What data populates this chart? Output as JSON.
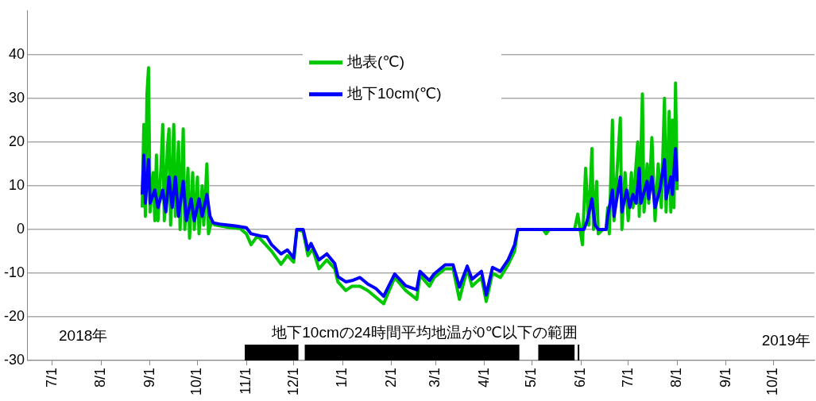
{
  "chart_data": {
    "type": "line",
    "grid": "y",
    "legend": "top",
    "xlim": [
      "2018-06-15",
      "2019-10-27"
    ],
    "xticks": [
      {
        "value": "2018-07-01",
        "label": "7/1"
      },
      {
        "value": "2018-08-01",
        "label": "8/1"
      },
      {
        "value": "2018-09-01",
        "label": "9/1"
      },
      {
        "value": "2018-10-01",
        "label": "10/1"
      },
      {
        "value": "2018-11-01",
        "label": "11/1"
      },
      {
        "value": "2018-12-01",
        "label": "12/1"
      },
      {
        "value": "2019-01-01",
        "label": "1/1"
      },
      {
        "value": "2019-02-01",
        "label": "2/1"
      },
      {
        "value": "2019-03-01",
        "label": "3/1"
      },
      {
        "value": "2019-04-01",
        "label": "4/1"
      },
      {
        "value": "2019-05-01",
        "label": "5/1"
      },
      {
        "value": "2019-06-01",
        "label": "6/1"
      },
      {
        "value": "2019-07-01",
        "label": "7/1"
      },
      {
        "value": "2019-08-01",
        "label": "8/1"
      },
      {
        "value": "2019-09-01",
        "label": "9/1"
      },
      {
        "value": "2019-10-01",
        "label": "10/1"
      }
    ],
    "ylim": [
      -30,
      50
    ],
    "yticks": [
      -30,
      -20,
      -10,
      0,
      10,
      20,
      30,
      40
    ],
    "series": [
      {
        "name": "地表(℃)",
        "color": "#00c800",
        "x": [
          "2018-08-27",
          "2018-08-28",
          "2018-08-29",
          "2018-08-30",
          "2018-08-31",
          "2018-09-01",
          "2018-09-03",
          "2018-09-04",
          "2018-09-05",
          "2018-09-06",
          "2018-09-08",
          "2018-09-09",
          "2018-09-10",
          "2018-09-12",
          "2018-09-13",
          "2018-09-14",
          "2018-09-16",
          "2018-09-17",
          "2018-09-19",
          "2018-09-20",
          "2018-09-22",
          "2018-09-23",
          "2018-09-25",
          "2018-09-26",
          "2018-09-28",
          "2018-09-29",
          "2018-10-01",
          "2018-10-02",
          "2018-10-04",
          "2018-10-05",
          "2018-10-07",
          "2018-10-08",
          "2018-10-10",
          "2018-10-12",
          "2018-10-20",
          "2018-10-28",
          "2018-11-01",
          "2018-11-04",
          "2018-11-08",
          "2018-11-12",
          "2018-11-17",
          "2018-11-20",
          "2018-11-23",
          "2018-11-27",
          "2018-12-01",
          "2018-12-03",
          "2018-12-07",
          "2018-12-10",
          "2018-12-13",
          "2018-12-17",
          "2018-12-22",
          "2018-12-27",
          "2018-12-29",
          "2019-01-03",
          "2019-01-07",
          "2019-01-12",
          "2019-01-17",
          "2019-01-22",
          "2019-01-27",
          "2019-02-03",
          "2019-02-10",
          "2019-02-17",
          "2019-02-19",
          "2019-02-25",
          "2019-02-28",
          "2019-03-07",
          "2019-03-12",
          "2019-03-16",
          "2019-03-21",
          "2019-03-24",
          "2019-03-30",
          "2019-04-02",
          "2019-04-06",
          "2019-04-11",
          "2019-04-16",
          "2019-04-20",
          "2019-04-22",
          "2019-05-08",
          "2019-05-10",
          "2019-05-12",
          "2019-05-28",
          "2019-05-30",
          "2019-06-02",
          "2019-06-04",
          "2019-06-06",
          "2019-06-08",
          "2019-06-09",
          "2019-06-11",
          "2019-06-12",
          "2019-06-15",
          "2019-06-17",
          "2019-06-18",
          "2019-06-19",
          "2019-06-21",
          "2019-06-22",
          "2019-06-26",
          "2019-06-27",
          "2019-06-29",
          "2019-07-01",
          "2019-07-03",
          "2019-07-04",
          "2019-07-07",
          "2019-07-08",
          "2019-07-10",
          "2019-07-11",
          "2019-07-13",
          "2019-07-14",
          "2019-07-16",
          "2019-07-18",
          "2019-07-20",
          "2019-07-22",
          "2019-07-24",
          "2019-07-25",
          "2019-07-27",
          "2019-07-28",
          "2019-07-29",
          "2019-07-30",
          "2019-07-31",
          "2019-08-01"
        ],
        "values": [
          5,
          24,
          3,
          31,
          37,
          4,
          13,
          2,
          17,
          2,
          15,
          24,
          2,
          19,
          23,
          1,
          24,
          3,
          20,
          0,
          23,
          0,
          14,
          -2,
          13,
          0,
          12,
          -1,
          10,
          1,
          15,
          -1,
          2,
          1,
          0.5,
          0.2,
          -1,
          -3.5,
          -1.5,
          -3,
          -5,
          -6.5,
          -8,
          -6,
          -7.5,
          0,
          -0.5,
          -6,
          -4.5,
          -9,
          -7,
          -9,
          -12,
          -14,
          -13,
          -13,
          -14,
          -15.5,
          -17,
          -11,
          -14,
          -16,
          -10.5,
          -13,
          -11,
          -9,
          -9,
          -16,
          -9,
          -13,
          -11,
          -16.5,
          -10,
          -11,
          -8,
          -5,
          0,
          0,
          -1,
          0,
          0,
          3.5,
          -3.5,
          14,
          1,
          18.5,
          0,
          11,
          -1,
          0,
          0,
          5,
          -1,
          25,
          2,
          25.5,
          0,
          13,
          2,
          13,
          5,
          20,
          3,
          31,
          4,
          15,
          6,
          21,
          2,
          15,
          5,
          30,
          4,
          27,
          4,
          25,
          5,
          33.5,
          9
        ]
      },
      {
        "name": "地下10cm(℃)",
        "color": "#0000ff",
        "x": [
          "2018-08-27",
          "2018-08-28",
          "2018-08-29",
          "2018-08-31",
          "2018-09-01",
          "2018-09-04",
          "2018-09-06",
          "2018-09-09",
          "2018-09-11",
          "2018-09-13",
          "2018-09-15",
          "2018-09-17",
          "2018-09-19",
          "2018-09-22",
          "2018-09-24",
          "2018-09-27",
          "2018-09-29",
          "2018-10-02",
          "2018-10-04",
          "2018-10-07",
          "2018-10-09",
          "2018-10-11",
          "2018-10-15",
          "2018-10-25",
          "2018-11-01",
          "2018-11-04",
          "2018-11-10",
          "2018-11-14",
          "2018-11-17",
          "2018-11-23",
          "2018-11-27",
          "2018-12-01",
          "2018-12-03",
          "2018-12-07",
          "2018-12-10",
          "2018-12-12",
          "2018-12-17",
          "2018-12-22",
          "2018-12-27",
          "2018-12-29",
          "2019-01-03",
          "2019-01-07",
          "2019-01-12",
          "2019-01-17",
          "2019-01-22",
          "2019-01-27",
          "2019-02-03",
          "2019-02-10",
          "2019-02-17",
          "2019-02-19",
          "2019-02-25",
          "2019-02-28",
          "2019-03-07",
          "2019-03-12",
          "2019-03-16",
          "2019-03-21",
          "2019-03-24",
          "2019-03-30",
          "2019-04-02",
          "2019-04-06",
          "2019-04-11",
          "2019-04-16",
          "2019-04-20",
          "2019-04-22",
          "2019-06-03",
          "2019-06-05",
          "2019-06-08",
          "2019-06-10",
          "2019-06-12",
          "2019-06-17",
          "2019-06-18",
          "2019-06-21",
          "2019-06-22",
          "2019-06-26",
          "2019-06-27",
          "2019-06-30",
          "2019-07-02",
          "2019-07-04",
          "2019-07-06",
          "2019-07-08",
          "2019-07-09",
          "2019-07-13",
          "2019-07-14",
          "2019-07-16",
          "2019-07-18",
          "2019-07-21",
          "2019-07-24",
          "2019-07-25",
          "2019-07-28",
          "2019-07-29",
          "2019-07-31",
          "2019-08-01"
        ],
        "values": [
          8,
          17,
          6,
          16,
          6,
          9,
          5,
          9,
          4,
          12,
          5,
          12,
          3,
          11,
          2,
          7,
          2,
          7,
          3,
          8,
          3,
          1.5,
          1.2,
          0.8,
          0.4,
          -1,
          -1.5,
          -1.7,
          -3.5,
          -5.6,
          -4.7,
          -6.5,
          0,
          0,
          -4.7,
          -3.2,
          -7,
          -5.6,
          -7.8,
          -10.8,
          -12,
          -11.7,
          -11,
          -12.5,
          -13.5,
          -15.3,
          -10.2,
          -12.9,
          -13.8,
          -9.6,
          -11.7,
          -10.2,
          -8.1,
          -8.1,
          -13.2,
          -8.4,
          -11.4,
          -9.6,
          -15,
          -8.7,
          -9.6,
          -6.9,
          -3.5,
          0,
          0,
          2,
          7,
          1,
          0,
          0,
          3,
          9,
          3,
          12,
          4,
          9,
          5,
          8,
          6,
          14,
          6,
          11,
          7,
          12,
          5,
          9,
          16,
          7,
          12,
          8,
          18.5,
          11
        ]
      }
    ],
    "bands": [
      {
        "axis": "x",
        "from": "2018-10-31",
        "to": "2018-12-04",
        "color": "#000000"
      },
      {
        "axis": "x",
        "from": "2018-12-08",
        "to": "2019-04-23",
        "color": "#000000"
      },
      {
        "axis": "x",
        "from": "2019-05-05",
        "to": "2019-05-28",
        "color": "#000000"
      },
      {
        "axis": "x",
        "from": "2019-05-30",
        "to": "2019-05-31",
        "color": "#000000"
      }
    ],
    "annotations": [
      "2018年",
      "地下10cmの24時間平均地温が0℃以下の範囲",
      "2019年"
    ]
  }
}
